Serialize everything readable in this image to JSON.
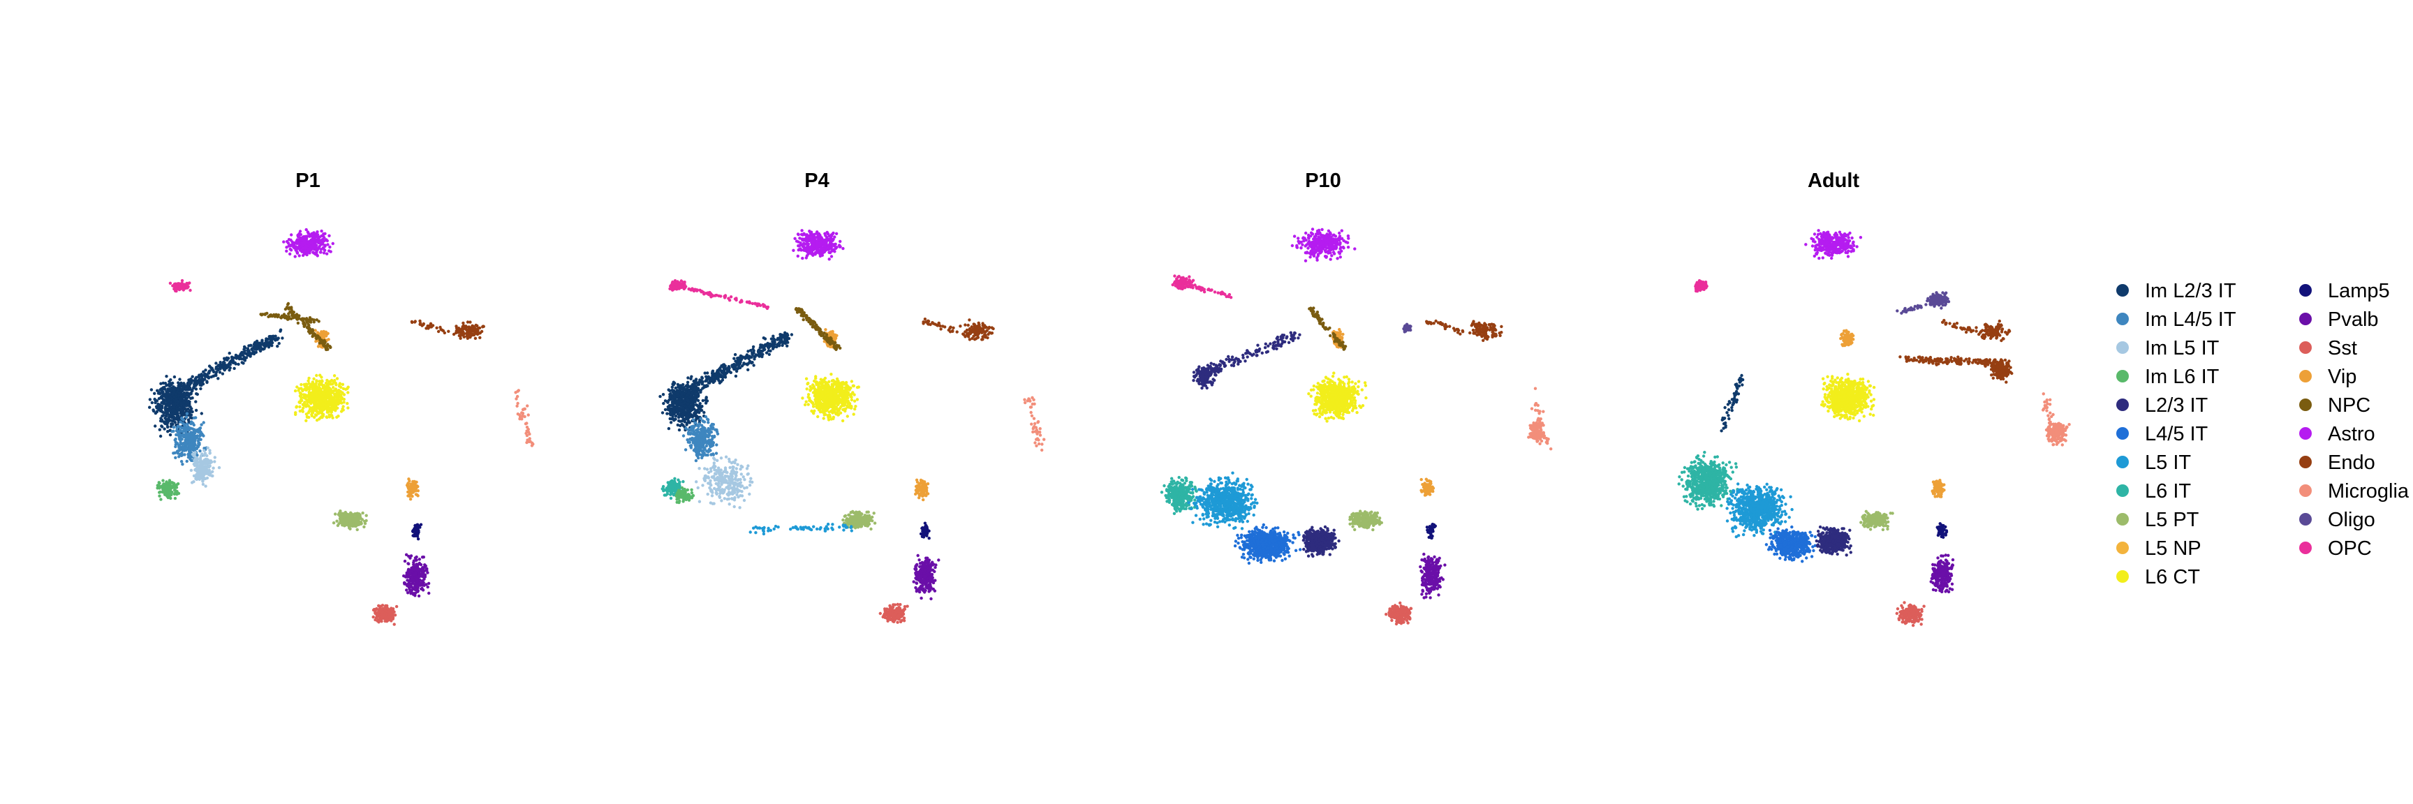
{
  "chart_data": {
    "type": "scatter",
    "description_axes": "UMAP embedding, axes hidden",
    "panels": [
      {
        "title": "P1"
      },
      {
        "title": "P4"
      },
      {
        "title": "P10"
      },
      {
        "title": "Adult"
      }
    ],
    "legend": {
      "placement": "right",
      "columns": 2,
      "items": [
        {
          "label": "Im L2/3 IT",
          "color": "#0f3a6b"
        },
        {
          "label": "Im L4/5 IT",
          "color": "#3e86bf"
        },
        {
          "label": "Im L5 IT",
          "color": "#a6c8e2"
        },
        {
          "label": "Im L6 IT",
          "color": "#59b96a"
        },
        {
          "label": "L2/3 IT",
          "color": "#2e2c7e"
        },
        {
          "label": "L4/5 IT",
          "color": "#1f6fd8"
        },
        {
          "label": "L5 IT",
          "color": "#1e9ad6"
        },
        {
          "label": "L6 IT",
          "color": "#2eb4a5"
        },
        {
          "label": "L5 PT",
          "color": "#9cbb6a"
        },
        {
          "label": "L5 NP",
          "color": "#f3b33c"
        },
        {
          "label": "L6 CT",
          "color": "#f2ee1b"
        },
        {
          "label": "Lamp5",
          "color": "#12127a"
        },
        {
          "label": "Pvalb",
          "color": "#6a0fa8"
        },
        {
          "label": "Sst",
          "color": "#dc5e5a"
        },
        {
          "label": "Vip",
          "color": "#eda037"
        },
        {
          "label": "NPC",
          "color": "#7a5c10"
        },
        {
          "label": "Astro",
          "color": "#b51cf0"
        },
        {
          "label": "Endo",
          "color": "#963f12"
        },
        {
          "label": "Microglia",
          "color": "#f28e7a"
        },
        {
          "label": "Oligo",
          "color": "#5a4a96"
        },
        {
          "label": "OPC",
          "color": "#ea2f9b"
        }
      ]
    },
    "grid": false
  }
}
